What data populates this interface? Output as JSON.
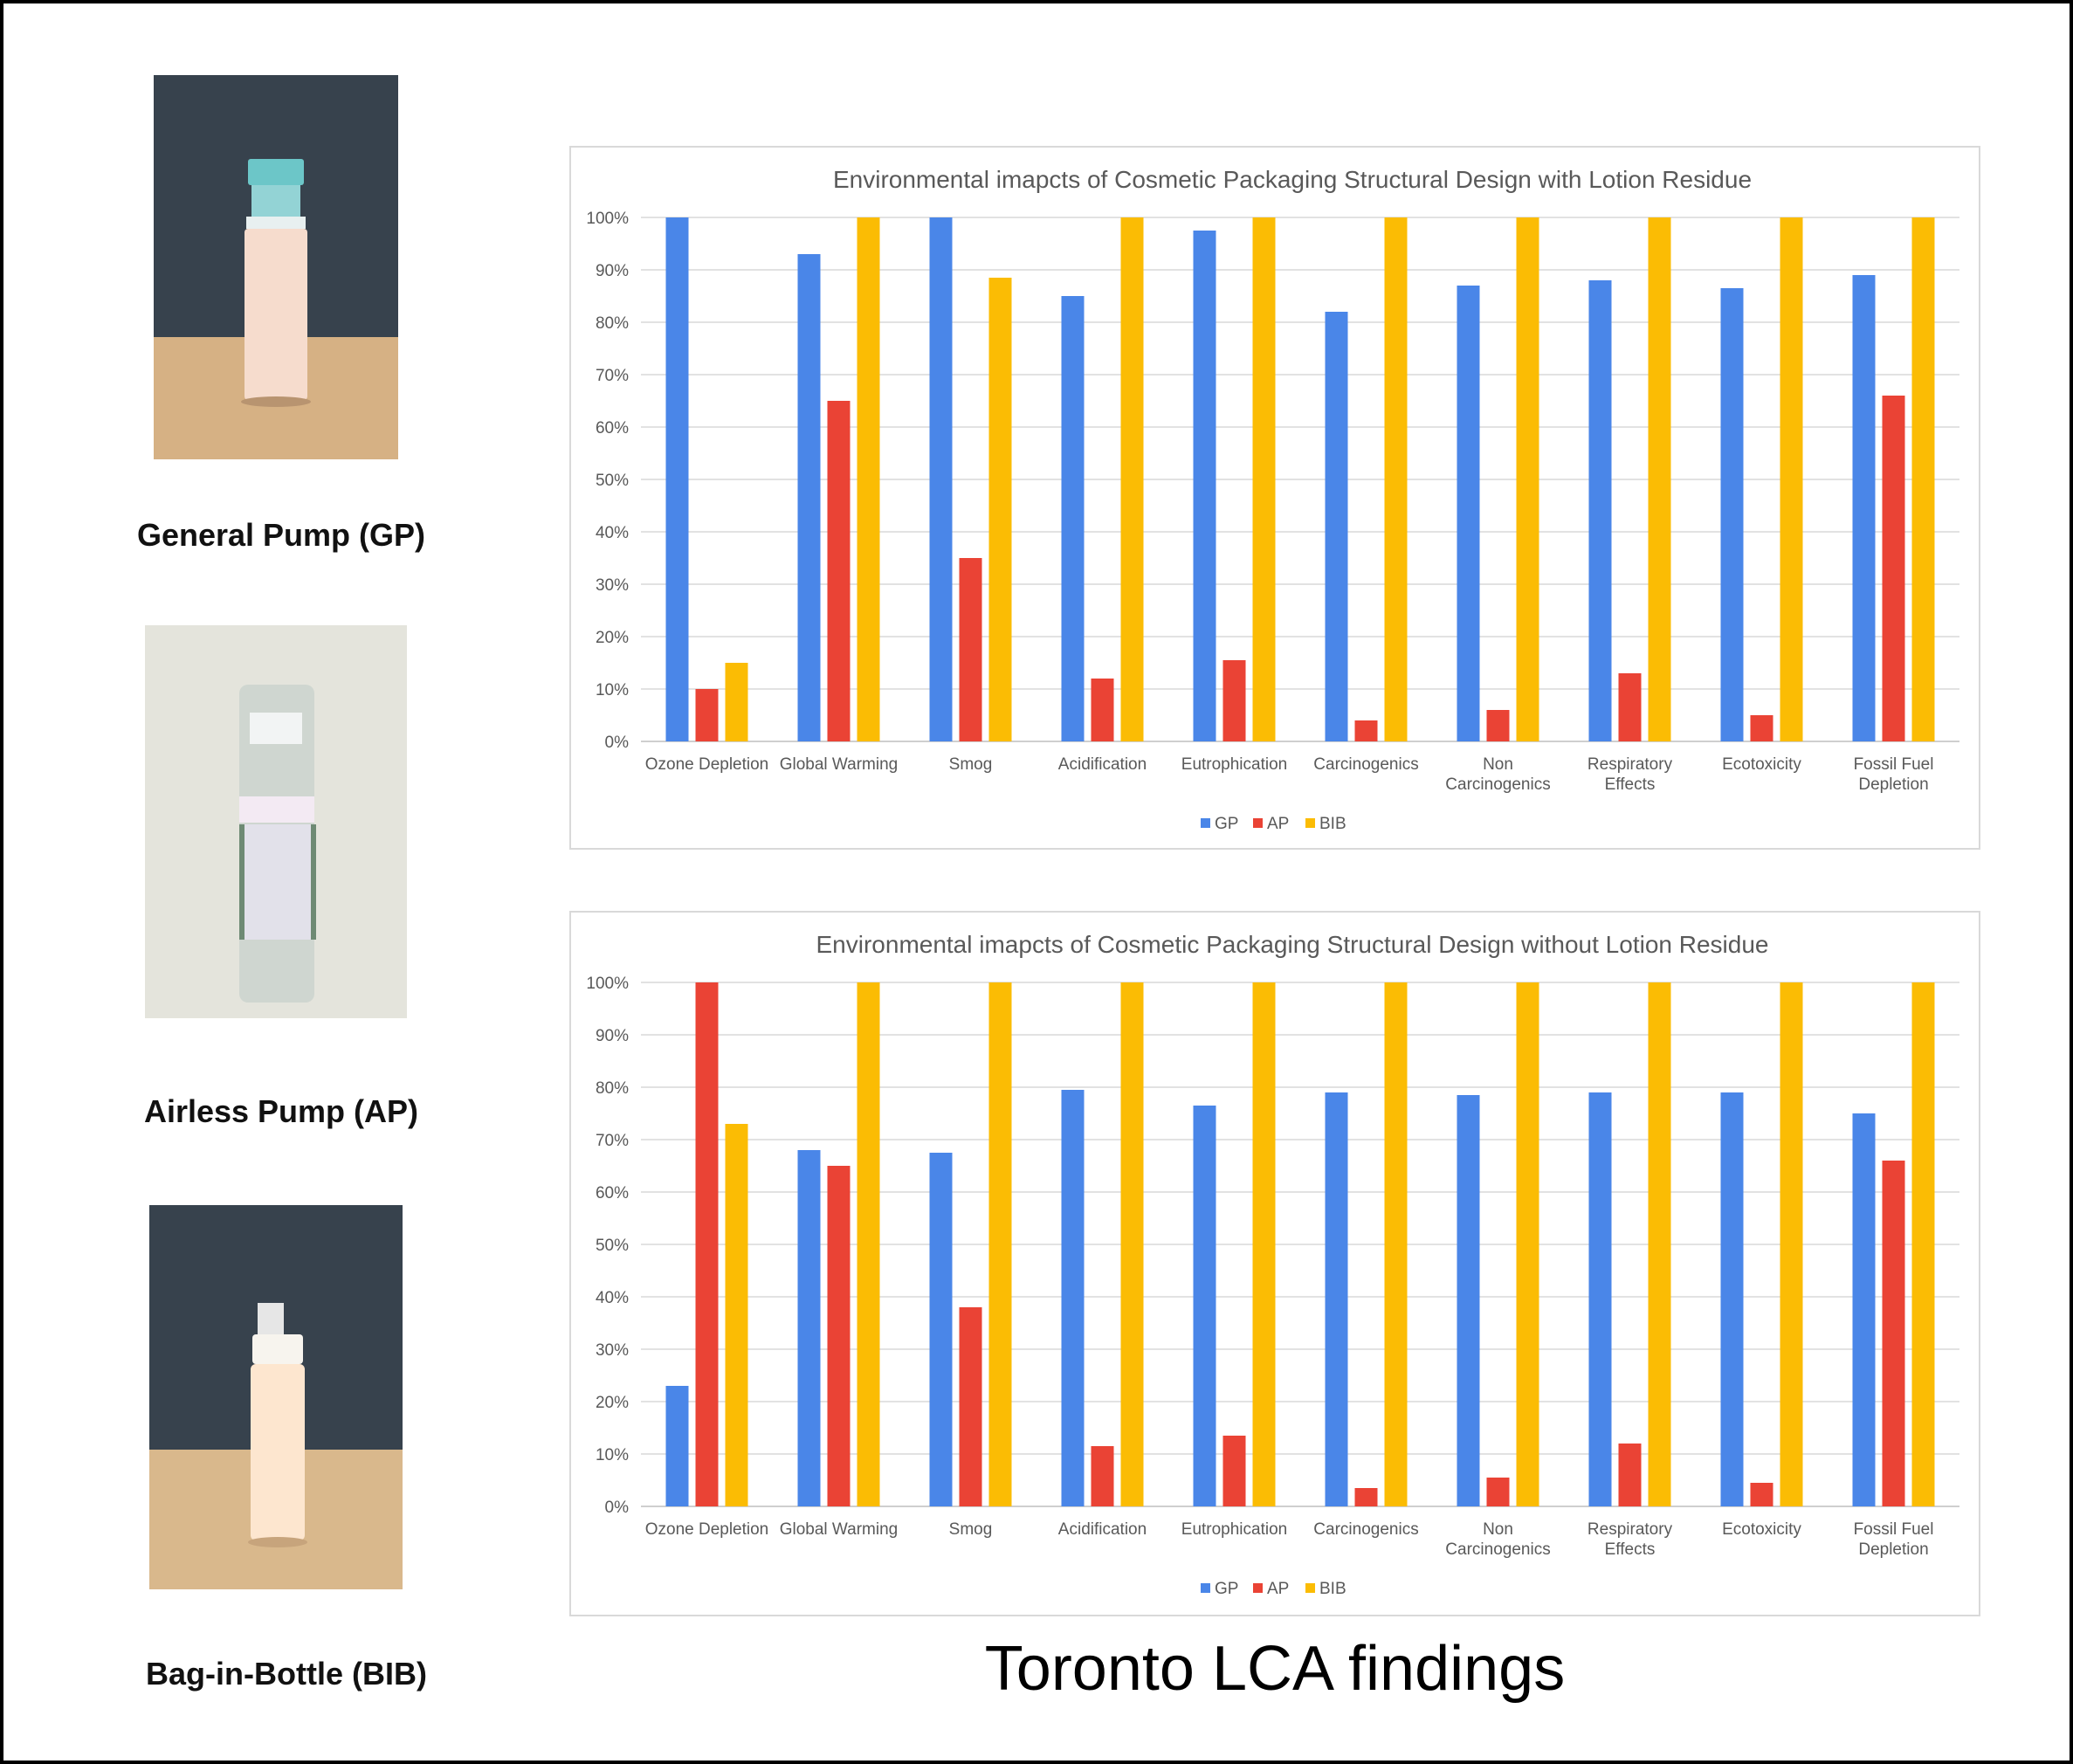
{
  "products": [
    {
      "label": "General Pump (GP)",
      "image": "general-pump-bottle-photo"
    },
    {
      "label": "Airless Pump (AP)",
      "image": "airless-pump-bottle-photo"
    },
    {
      "label": "Bag-in-Bottle (BIB)",
      "image": "bag-in-bottle-photo"
    }
  ],
  "footer_title": "Toronto LCA findings",
  "colors": {
    "GP": "#4a86e8",
    "AP": "#ea4335",
    "BIB": "#fbbc04"
  },
  "chart_data": [
    {
      "type": "bar",
      "title": "Environmental imapcts of Cosmetic Packaging Structural Design with Lotion Residue",
      "categories": [
        "Ozone Depletion",
        "Global Warming",
        "Smog",
        "Acidification",
        "Eutrophication",
        "Carcinogenics",
        "Non\nCarcinogenics",
        "Respiratory\nEffects",
        "Ecotoxicity",
        "Fossil Fuel\nDepletion"
      ],
      "series": [
        {
          "name": "GP",
          "values": [
            100,
            93,
            100,
            85,
            97.5,
            82,
            87,
            88,
            86.5,
            89
          ]
        },
        {
          "name": "AP",
          "values": [
            10,
            65,
            35,
            12,
            15.5,
            4,
            6,
            13,
            5,
            66
          ]
        },
        {
          "name": "BIB",
          "values": [
            15,
            100,
            88.5,
            100,
            100,
            100,
            100,
            100,
            100,
            100
          ]
        }
      ],
      "yticks": [
        "0%",
        "10%",
        "20%",
        "30%",
        "40%",
        "50%",
        "60%",
        "70%",
        "80%",
        "90%",
        "100%"
      ],
      "ylim": [
        0,
        100
      ],
      "grid": true,
      "legend": "bottom"
    },
    {
      "type": "bar",
      "title": "Environmental imapcts of Cosmetic Packaging Structural Design without Lotion Residue",
      "categories": [
        "Ozone Depletion",
        "Global Warming",
        "Smog",
        "Acidification",
        "Eutrophication",
        "Carcinogenics",
        "Non\nCarcinogenics",
        "Respiratory\nEffects",
        "Ecotoxicity",
        "Fossil Fuel\nDepletion"
      ],
      "series": [
        {
          "name": "GP",
          "values": [
            23,
            68,
            67.5,
            79.5,
            76.5,
            79,
            78.5,
            79,
            79,
            75
          ]
        },
        {
          "name": "AP",
          "values": [
            100,
            65,
            38,
            11.5,
            13.5,
            3.5,
            5.5,
            12,
            4.5,
            66
          ]
        },
        {
          "name": "BIB",
          "values": [
            73,
            100,
            100,
            100,
            100,
            100,
            100,
            100,
            100,
            100
          ]
        }
      ],
      "yticks": [
        "0%",
        "10%",
        "20%",
        "30%",
        "40%",
        "50%",
        "60%",
        "70%",
        "80%",
        "90%",
        "100%"
      ],
      "ylim": [
        0,
        100
      ],
      "grid": true,
      "legend": "bottom"
    }
  ]
}
